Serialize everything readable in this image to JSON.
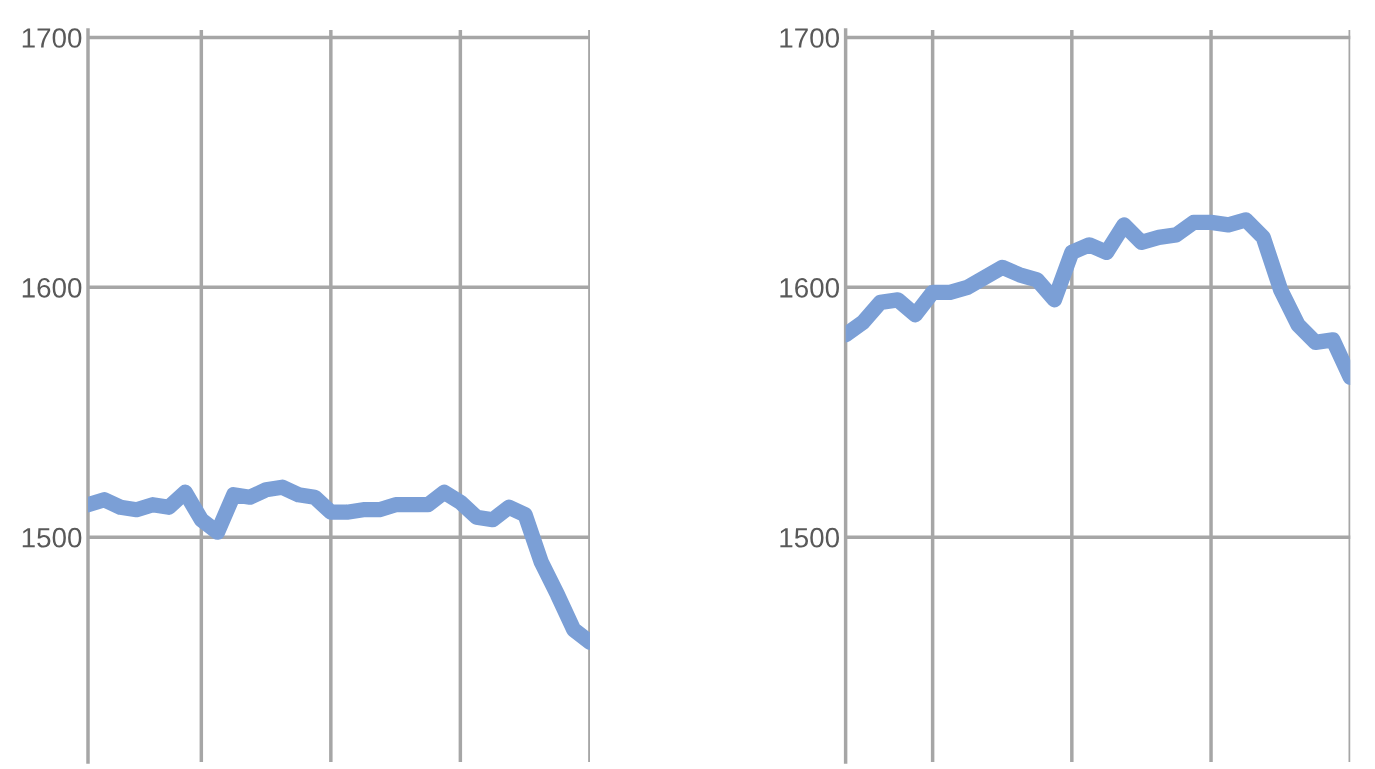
{
  "chart_data": [
    {
      "type": "line",
      "categories": [
        null,
        null,
        null,
        null,
        null,
        null,
        null,
        null,
        null,
        null,
        null,
        null,
        null,
        null,
        null,
        null,
        null,
        null,
        null,
        null,
        null,
        null,
        null,
        null,
        null,
        null,
        null,
        null,
        null,
        null,
        null,
        null
      ],
      "series": [
        {
          "color": "#7b9fd6",
          "values": [
            1513,
            1515,
            1512,
            1511,
            1513,
            1512,
            1518,
            1507,
            1502,
            1517,
            1516,
            1519,
            1520,
            1517,
            1516,
            1510,
            1510,
            1511,
            1511,
            1513,
            1513,
            1513,
            1518,
            1514,
            1508,
            1507,
            1512,
            1509,
            1490,
            1477,
            1463,
            1458
          ]
        }
      ],
      "ylim": [
        1410,
        1703
      ],
      "yticks": [
        1500,
        1600,
        1700
      ],
      "grid": true,
      "marker": "none",
      "line_style": "solid"
    },
    {
      "type": "line",
      "categories": [
        null,
        null,
        null,
        null,
        null,
        null,
        null,
        null,
        null,
        null,
        null,
        null,
        null,
        null,
        null,
        null,
        null,
        null,
        null,
        null,
        null,
        null,
        null,
        null,
        null,
        null,
        null,
        null,
        null,
        null
      ],
      "series": [
        {
          "color": "#7b9fd6",
          "values": [
            1581,
            1586,
            1594,
            1595,
            1589,
            1598,
            1598,
            1600,
            1604,
            1608,
            1605,
            1603,
            1595,
            1614,
            1617,
            1614,
            1625,
            1618,
            1620,
            1621,
            1626,
            1626,
            1625,
            1627,
            1620,
            1599,
            1585,
            1578,
            1579,
            1564
          ]
        }
      ],
      "ylim": [
        1410,
        1703
      ],
      "yticks": [
        1500,
        1600,
        1700
      ],
      "grid": true,
      "marker": "none",
      "line_style": "solid"
    }
  ]
}
